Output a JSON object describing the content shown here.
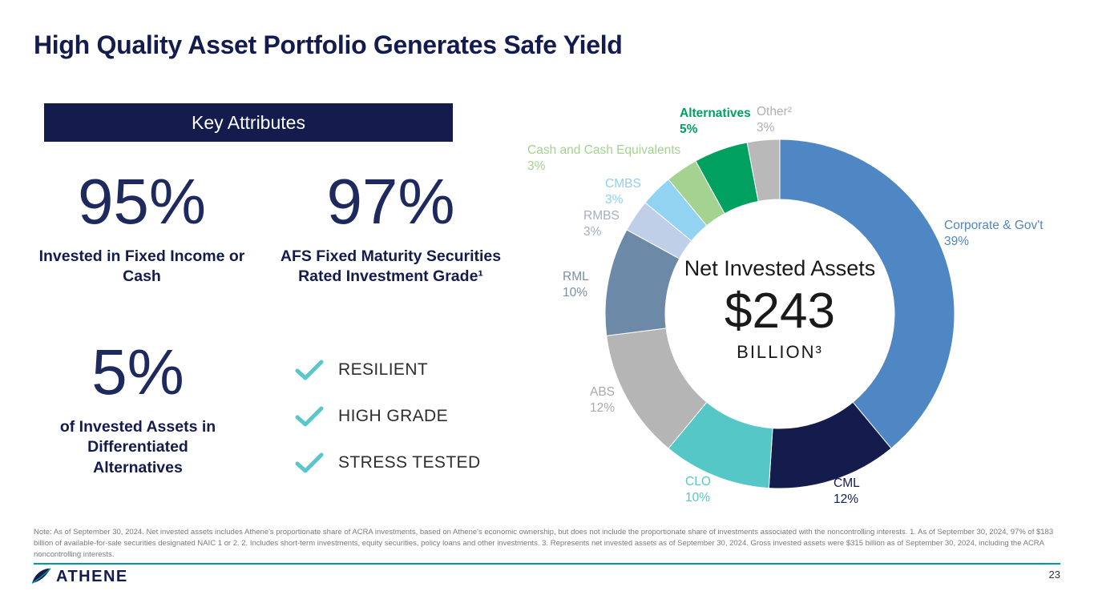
{
  "slide": {
    "title": "High Quality Asset Portfolio Generates Safe Yield",
    "page_number": "23",
    "brand": "ATHENE",
    "footnote": "Note: As of September 30, 2024. Net invested assets includes Athene's proportionate share of ACRA investments, based on Athene's economic ownership, but does not include the proportionate share of investments associated with the noncontrolling interests. 1. As of September 30, 2024, 97% of $183 billion of available-for-sale securities designated NAIC 1 or 2. 2. Includes short-term investments, equity securities, policy loans and other investments. 3. Represents net invested assets as of September 30, 2024. Gross invested assets were $315 billion as of September 30, 2024, including the ACRA noncontrolling interests."
  },
  "key_attributes": {
    "header": "Key Attributes",
    "stats": [
      {
        "value": "95%",
        "label": "Invested in Fixed Income or Cash"
      },
      {
        "value": "97%",
        "label": "AFS Fixed Maturity Securities Rated Investment Grade¹"
      },
      {
        "value": "5%",
        "label": "of Invested Assets in Differentiated Alternatives"
      }
    ],
    "checklist": [
      {
        "label": "RESILIENT"
      },
      {
        "label": "HIGH GRADE"
      },
      {
        "label": "STRESS TESTED"
      }
    ],
    "check_color": "#59c7c9"
  },
  "chart_data": {
    "type": "pie",
    "subtype": "donut",
    "title": "Net Invested Assets",
    "center_value": "$243",
    "center_unit": "BILLION³",
    "total_billions": 243,
    "legend_position": "around",
    "categories": [
      "Corporate & Gov't",
      "CML",
      "CLO",
      "ABS",
      "RML",
      "RMBS",
      "CMBS",
      "Cash and Cash Equivalents",
      "Alternatives",
      "Other²"
    ],
    "values": [
      39,
      12,
      10,
      12,
      10,
      3,
      3,
      3,
      5,
      3
    ],
    "colors": [
      "#4e87c4",
      "#141b4d",
      "#56c7c7",
      "#b5b5b5",
      "#6d89a8",
      "#bfcfe8",
      "#92d3f1",
      "#a4d391",
      "#00a160",
      "#b9b9b9"
    ],
    "label_colors": [
      "#4e87c4",
      "#141b4d",
      "#56c7c7",
      "#a9a9a9",
      "#7b8ea4",
      "#a5b0bf",
      "#8fd0f0",
      "#a4d391",
      "#00a160",
      "#b0b0b0"
    ]
  },
  "colors": {
    "navy": "#141b4d",
    "teal_rule": "#0097a9",
    "value_navy": "#1e2a5e"
  }
}
